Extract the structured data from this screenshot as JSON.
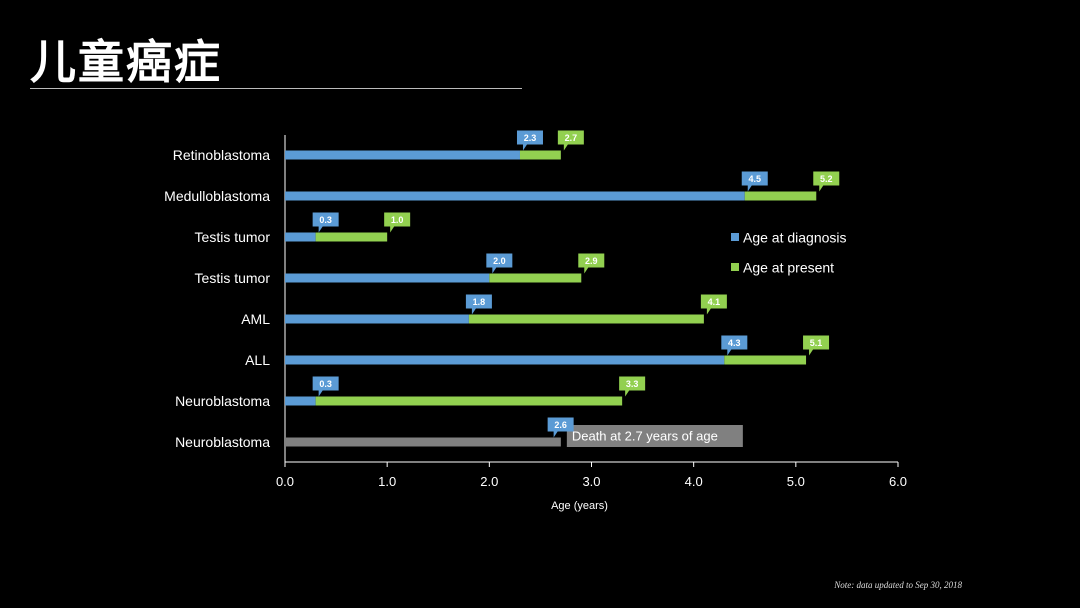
{
  "slide": {
    "title": "儿童癌症",
    "footnote": "Note: data updated to Sep 30, 2018"
  },
  "colors": {
    "diagnosis": "#5b9bd5",
    "present": "#92d050",
    "death": "#808080",
    "background": "#000000",
    "text": "#ffffff"
  },
  "chart_data": {
    "type": "bar",
    "orientation": "horizontal",
    "stacked": true,
    "xlabel": "Age (years)",
    "xlim": [
      0,
      6
    ],
    "xticks": [
      "0.0",
      "1.0",
      "2.0",
      "3.0",
      "4.0",
      "5.0",
      "6.0"
    ],
    "legend_position": "right",
    "series": [
      {
        "name": "Age at diagnosis",
        "key": "diagnosis"
      },
      {
        "name": "Age at present",
        "key": "present"
      }
    ],
    "rows": [
      {
        "label": "Retinoblastoma",
        "diagnosis": 2.3,
        "present": 2.7,
        "diagnosis_label": "2.3",
        "present_label": "2.7",
        "status": "alive"
      },
      {
        "label": "Medulloblastoma",
        "diagnosis": 4.5,
        "present": 5.2,
        "diagnosis_label": "4.5",
        "present_label": "5.2",
        "status": "alive"
      },
      {
        "label": "Testis tumor",
        "diagnosis": 0.3,
        "present": 1.0,
        "diagnosis_label": "0.3",
        "present_label": "1.0",
        "status": "alive"
      },
      {
        "label": "Testis tumor",
        "diagnosis": 2.0,
        "present": 2.9,
        "diagnosis_label": "2.0",
        "present_label": "2.9",
        "status": "alive"
      },
      {
        "label": "AML",
        "diagnosis": 1.8,
        "present": 4.1,
        "diagnosis_label": "1.8",
        "present_label": "4.1",
        "status": "alive"
      },
      {
        "label": "ALL",
        "diagnosis": 4.3,
        "present": 5.1,
        "diagnosis_label": "4.3",
        "present_label": "5.1",
        "status": "alive"
      },
      {
        "label": "Neuroblastoma",
        "diagnosis": 0.3,
        "present": 3.3,
        "diagnosis_label": "0.3",
        "present_label": "3.3",
        "status": "alive"
      },
      {
        "label": "Neuroblastoma",
        "diagnosis": 2.6,
        "death_age": 2.7,
        "diagnosis_label": "2.6",
        "death_note": "Death at 2.7 years of age",
        "status": "deceased"
      }
    ]
  }
}
